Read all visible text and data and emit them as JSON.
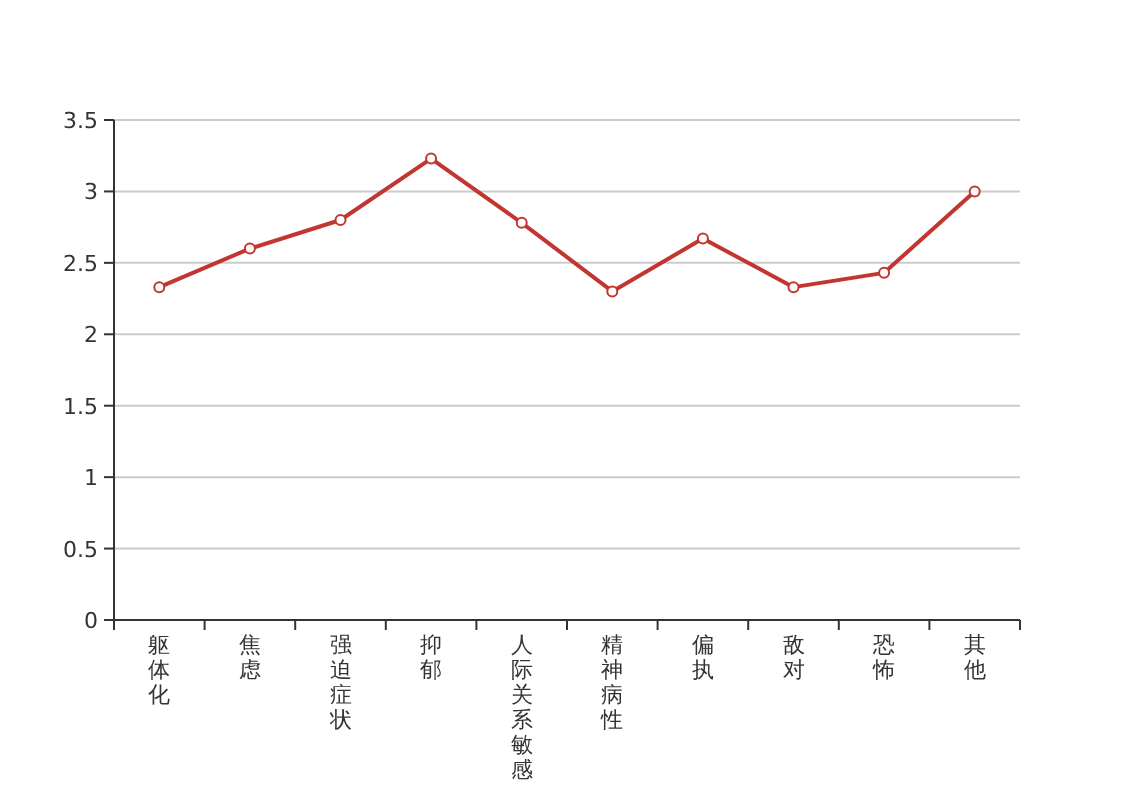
{
  "chart_data": {
    "type": "line",
    "categories": [
      "躯体化",
      "焦虑",
      "强迫症状",
      "抑郁",
      "人际关系敏感",
      "精神病性",
      "偏执",
      "敌对",
      "恐怖",
      "其他"
    ],
    "series": [
      {
        "color": "#c23531",
        "values": [
          2.33,
          2.6,
          2.8,
          3.23,
          2.78,
          2.3,
          2.67,
          2.33,
          2.43,
          3.0
        ]
      }
    ],
    "ylim": [
      0,
      3.5
    ],
    "yticks": [
      0,
      0.5,
      1,
      1.5,
      2,
      2.5,
      3,
      3.5
    ],
    "grid": "y",
    "marker": "circle"
  }
}
